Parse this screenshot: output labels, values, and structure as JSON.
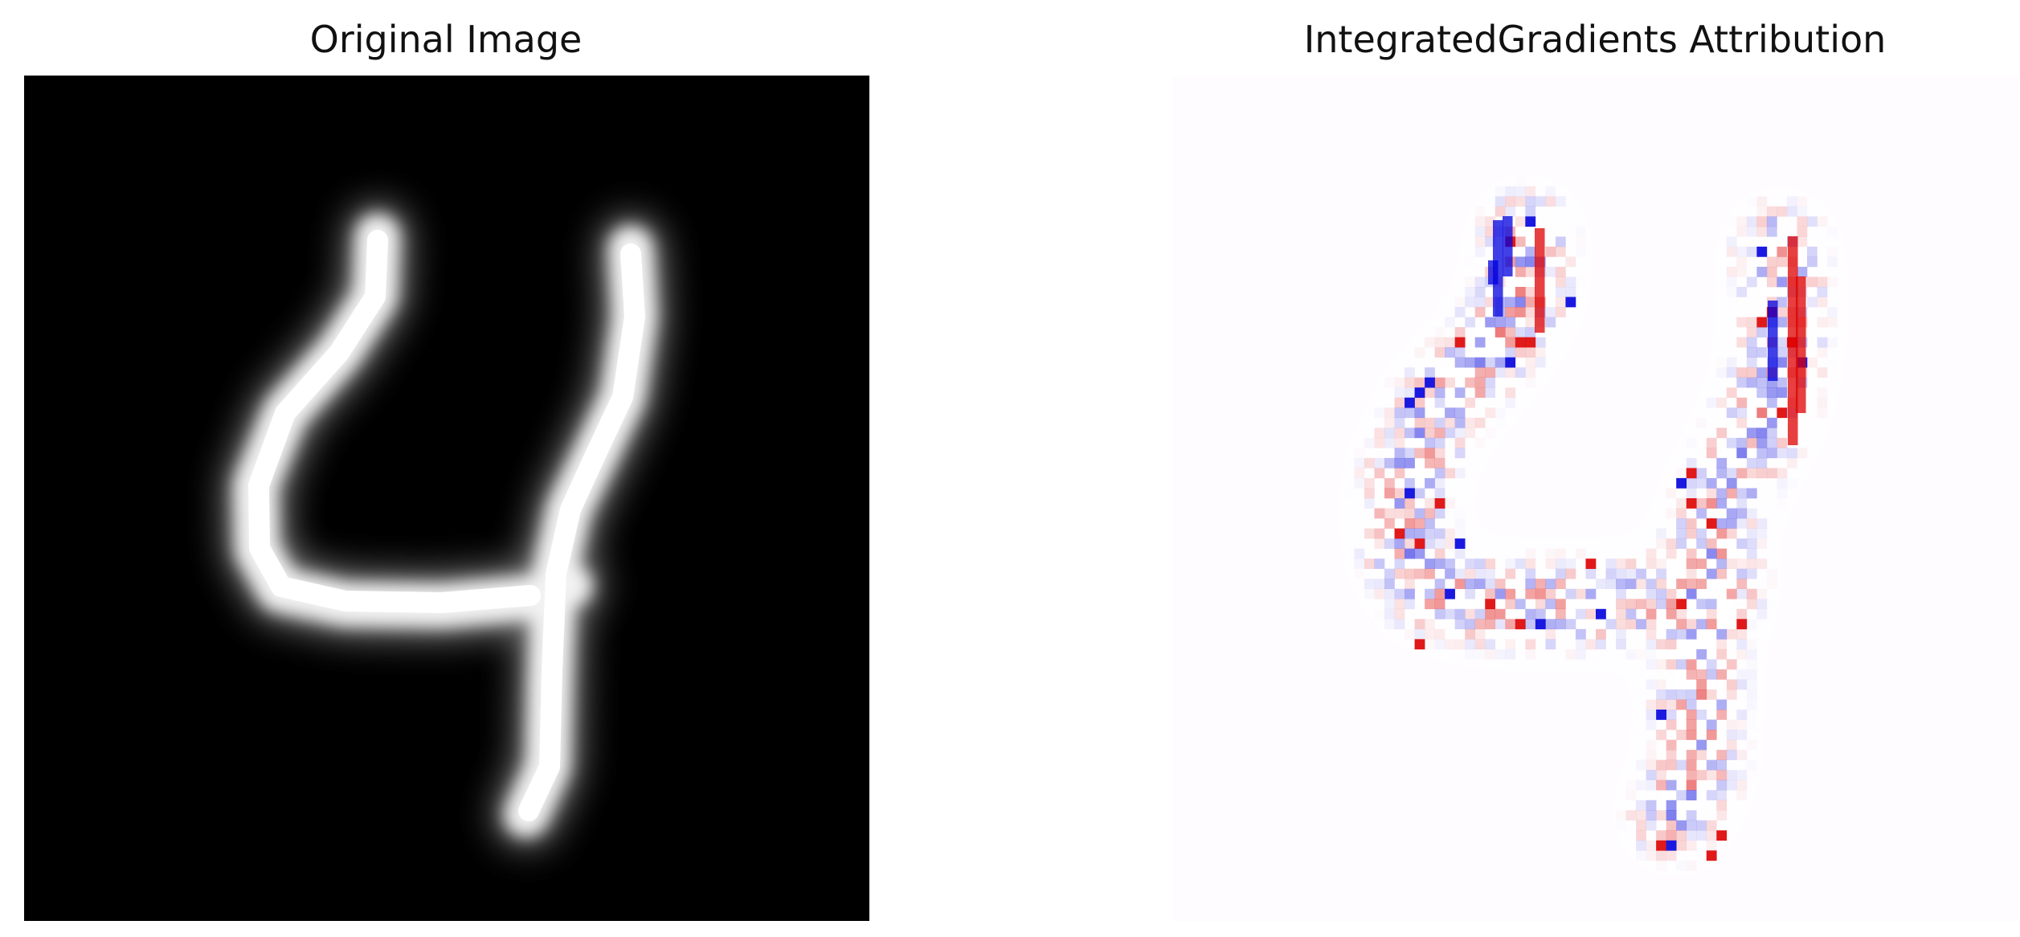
{
  "figure": {
    "left_panel": {
      "title": "Original Image",
      "background": "#000000",
      "stroke_color": "#ffffff"
    },
    "right_panel": {
      "title": "IntegratedGradients Attribution",
      "background": "#fefcff",
      "positive_color": "#dd0000",
      "negative_color": "#0000dd"
    }
  }
}
